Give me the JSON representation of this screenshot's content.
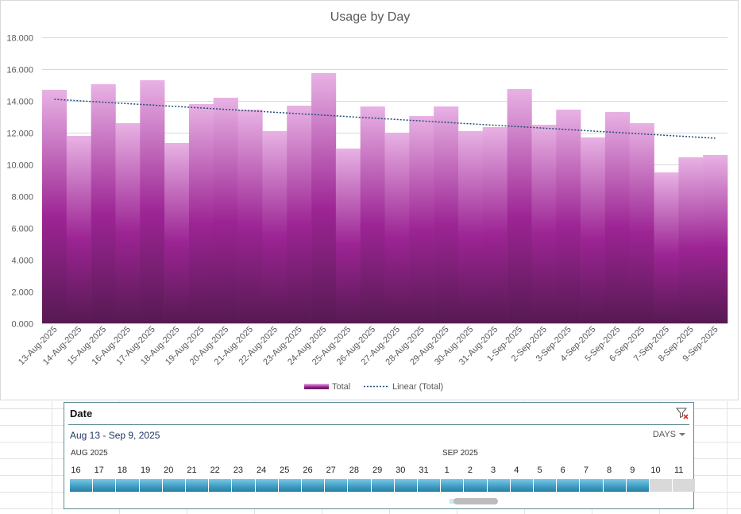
{
  "chart_data": {
    "type": "bar",
    "title": "Usage by Day",
    "categories": [
      "13-Aug-2025",
      "14-Aug-2025",
      "15-Aug-2025",
      "16-Aug-2025",
      "17-Aug-2025",
      "18-Aug-2025",
      "19-Aug-2025",
      "20-Aug-2025",
      "21-Aug-2025",
      "22-Aug-2025",
      "23-Aug-2025",
      "24-Aug-2025",
      "25-Aug-2025",
      "26-Aug-2025",
      "27-Aug-2025",
      "28-Aug-2025",
      "29-Aug-2025",
      "30-Aug-2025",
      "31-Aug-2025",
      "1-Sep-2025",
      "2-Sep-2025",
      "3-Sep-2025",
      "4-Sep-2025",
      "5-Sep-2025",
      "6-Sep-2025",
      "7-Sep-2025",
      "8-Sep-2025",
      "9-Sep-2025"
    ],
    "series": [
      {
        "name": "Total",
        "values": [
          14.7,
          11.8,
          15.05,
          12.6,
          15.3,
          11.35,
          13.8,
          14.2,
          13.45,
          12.1,
          13.7,
          15.75,
          11.0,
          13.65,
          12.0,
          13.05,
          13.65,
          12.1,
          12.35,
          14.75,
          12.5,
          13.45,
          11.7,
          13.3,
          12.6,
          9.5,
          10.45,
          10.6
        ]
      }
    ],
    "trendline": {
      "name": "Linear (Total)",
      "start": 14.1,
      "end": 11.65
    },
    "yticks": [
      "0.000",
      "2.000",
      "4.000",
      "6.000",
      "8.000",
      "10.000",
      "12.000",
      "14.000",
      "16.000",
      "18.000"
    ],
    "ylim": [
      0,
      18
    ],
    "legend": [
      {
        "label": "Total",
        "swatch": "bar"
      },
      {
        "label": "Linear (Total)",
        "swatch": "dotted-line"
      }
    ],
    "legend_position": "bottom",
    "colors": {
      "bar_top": "#e8b2e4",
      "bar_mid": "#9c2494",
      "bar_bottom": "#561a52",
      "trend": "#1f4e79",
      "grid": "#d9d9d9"
    }
  },
  "slicer": {
    "title": "Date",
    "range": "Aug 13 - Sep 9, 2025",
    "level": "DAYS",
    "months": [
      "AUG 2025",
      "SEP 2025"
    ],
    "days": [
      "16",
      "17",
      "18",
      "19",
      "20",
      "21",
      "22",
      "23",
      "24",
      "25",
      "26",
      "27",
      "28",
      "29",
      "30",
      "31",
      "1",
      "2",
      "3",
      "4",
      "5",
      "6",
      "7",
      "8",
      "9",
      "10",
      "11"
    ],
    "selected_count": 25
  }
}
